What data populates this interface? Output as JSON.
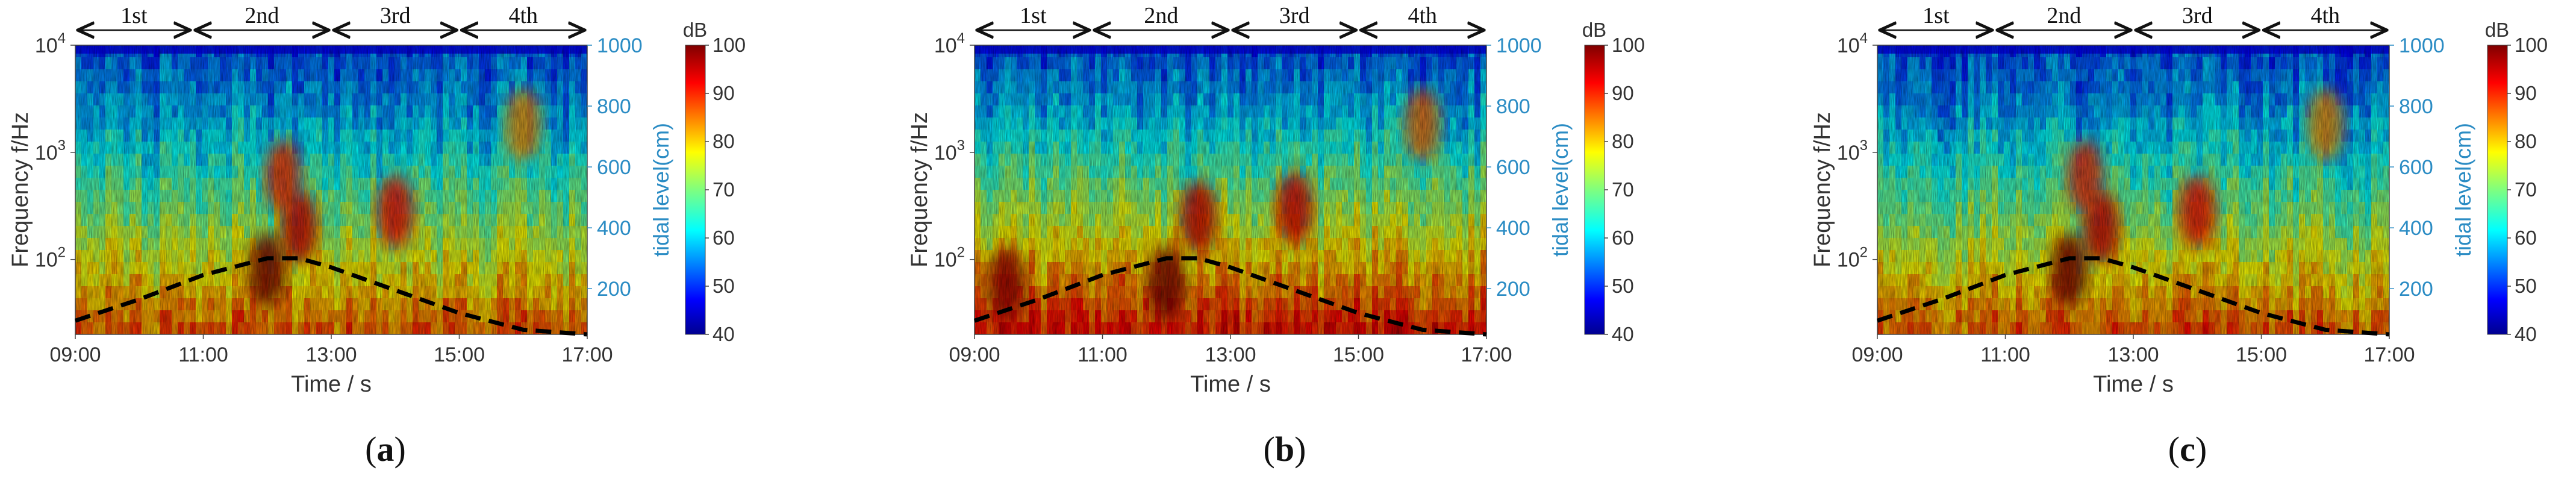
{
  "panel_captions": [
    "(a)",
    "(b)",
    "(c)"
  ],
  "caption_letters": [
    "a",
    "b",
    "c"
  ],
  "chart_data": [
    {
      "type": "heatmap",
      "panel": "a",
      "xlabel": "Time / s",
      "ylabel": "Frequency f/Hz",
      "y2label": "tidal level(cm)",
      "x_ticks": [
        "09:00",
        "11:00",
        "13:00",
        "15:00",
        "17:00"
      ],
      "y_ticks": [
        {
          "base": "10",
          "exp": "2"
        },
        {
          "base": "10",
          "exp": "3"
        },
        {
          "base": "10",
          "exp": "4"
        }
      ],
      "y2_ticks": [
        "200",
        "400",
        "600",
        "800",
        "1000"
      ],
      "y_scale": "log",
      "ylim_hz": [
        20,
        10000
      ],
      "y2lim": [
        50,
        1000
      ],
      "colorbar": {
        "unit": "dB",
        "range": [
          40,
          100
        ],
        "ticks": [
          "40",
          "50",
          "60",
          "70",
          "80",
          "90",
          "100"
        ]
      },
      "segments": [
        "1st",
        "2nd",
        "3rd",
        "4th"
      ],
      "segment_bounds": [
        "09:00",
        "10:50",
        "13:00",
        "15:00",
        "17:00"
      ],
      "tidal_level_dashed": {
        "time": [
          "09:00",
          "10:00",
          "11:00",
          "12:00",
          "12:30",
          "13:00",
          "14:00",
          "15:00",
          "16:00",
          "17:00"
        ],
        "level_cm": [
          95,
          165,
          245,
          300,
          300,
          270,
          195,
          120,
          65,
          50
        ]
      },
      "hotspots": [
        {
          "time": "12:00",
          "hz": 80,
          "db": 100
        },
        {
          "time": "12:30",
          "hz": 200,
          "db": 95
        },
        {
          "time": "12:15",
          "hz": 600,
          "db": 90
        },
        {
          "time": "14:00",
          "hz": 280,
          "db": 92
        },
        {
          "time": "16:00",
          "hz": 1800,
          "db": 84
        }
      ]
    },
    {
      "type": "heatmap",
      "panel": "b",
      "xlabel": "Time / s",
      "ylabel": "Frequency f/Hz",
      "y2label": "tidal level(cm)",
      "x_ticks": [
        "09:00",
        "11:00",
        "13:00",
        "15:00",
        "17:00"
      ],
      "y_ticks": [
        {
          "base": "10",
          "exp": "2"
        },
        {
          "base": "10",
          "exp": "3"
        },
        {
          "base": "10",
          "exp": "4"
        }
      ],
      "y2_ticks": [
        "200",
        "400",
        "600",
        "800",
        "1000"
      ],
      "y_scale": "log",
      "ylim_hz": [
        20,
        10000
      ],
      "y2lim": [
        50,
        1000
      ],
      "colorbar": {
        "unit": "dB",
        "range": [
          40,
          100
        ],
        "ticks": [
          "40",
          "50",
          "60",
          "70",
          "80",
          "90",
          "100"
        ]
      },
      "segments": [
        "1st",
        "2nd",
        "3rd",
        "4th"
      ],
      "segment_bounds": [
        "09:00",
        "10:50",
        "13:00",
        "15:00",
        "17:00"
      ],
      "tidal_level_dashed": {
        "time": [
          "09:00",
          "10:00",
          "11:00",
          "12:00",
          "12:30",
          "13:00",
          "14:00",
          "15:00",
          "16:00",
          "17:00"
        ],
        "level_cm": [
          95,
          165,
          245,
          300,
          300,
          270,
          195,
          120,
          65,
          50
        ]
      },
      "hotspots": [
        {
          "time": "12:00",
          "hz": 60,
          "db": 100
        },
        {
          "time": "09:30",
          "hz": 60,
          "db": 98
        },
        {
          "time": "12:30",
          "hz": 250,
          "db": 95
        },
        {
          "time": "14:00",
          "hz": 300,
          "db": 94
        },
        {
          "time": "16:00",
          "hz": 1800,
          "db": 86
        }
      ]
    },
    {
      "type": "heatmap",
      "panel": "c",
      "xlabel": "Time / s",
      "ylabel": "Frequency f/Hz",
      "y2label": "tidal level(cm)",
      "x_ticks": [
        "09:00",
        "11:00",
        "13:00",
        "15:00",
        "17:00"
      ],
      "y_ticks": [
        {
          "base": "10",
          "exp": "2"
        },
        {
          "base": "10",
          "exp": "3"
        },
        {
          "base": "10",
          "exp": "4"
        }
      ],
      "y2_ticks": [
        "200",
        "400",
        "600",
        "800",
        "1000"
      ],
      "y_scale": "log",
      "ylim_hz": [
        20,
        10000
      ],
      "y2lim": [
        50,
        1000
      ],
      "colorbar": {
        "unit": "dB",
        "range": [
          40,
          100
        ],
        "ticks": [
          "40",
          "50",
          "60",
          "70",
          "80",
          "90",
          "100"
        ]
      },
      "segments": [
        "1st",
        "2nd",
        "3rd",
        "4th"
      ],
      "segment_bounds": [
        "09:00",
        "10:50",
        "13:00",
        "15:00",
        "17:00"
      ],
      "tidal_level_dashed": {
        "time": [
          "09:00",
          "10:00",
          "11:00",
          "12:00",
          "12:30",
          "13:00",
          "14:00",
          "15:00",
          "16:00",
          "17:00"
        ],
        "level_cm": [
          95,
          165,
          245,
          300,
          300,
          270,
          195,
          120,
          65,
          50
        ]
      },
      "hotspots": [
        {
          "time": "12:00",
          "hz": 80,
          "db": 100
        },
        {
          "time": "12:30",
          "hz": 200,
          "db": 95
        },
        {
          "time": "12:15",
          "hz": 600,
          "db": 90
        },
        {
          "time": "14:00",
          "hz": 280,
          "db": 92
        },
        {
          "time": "16:00",
          "hz": 1800,
          "db": 84
        }
      ]
    }
  ]
}
